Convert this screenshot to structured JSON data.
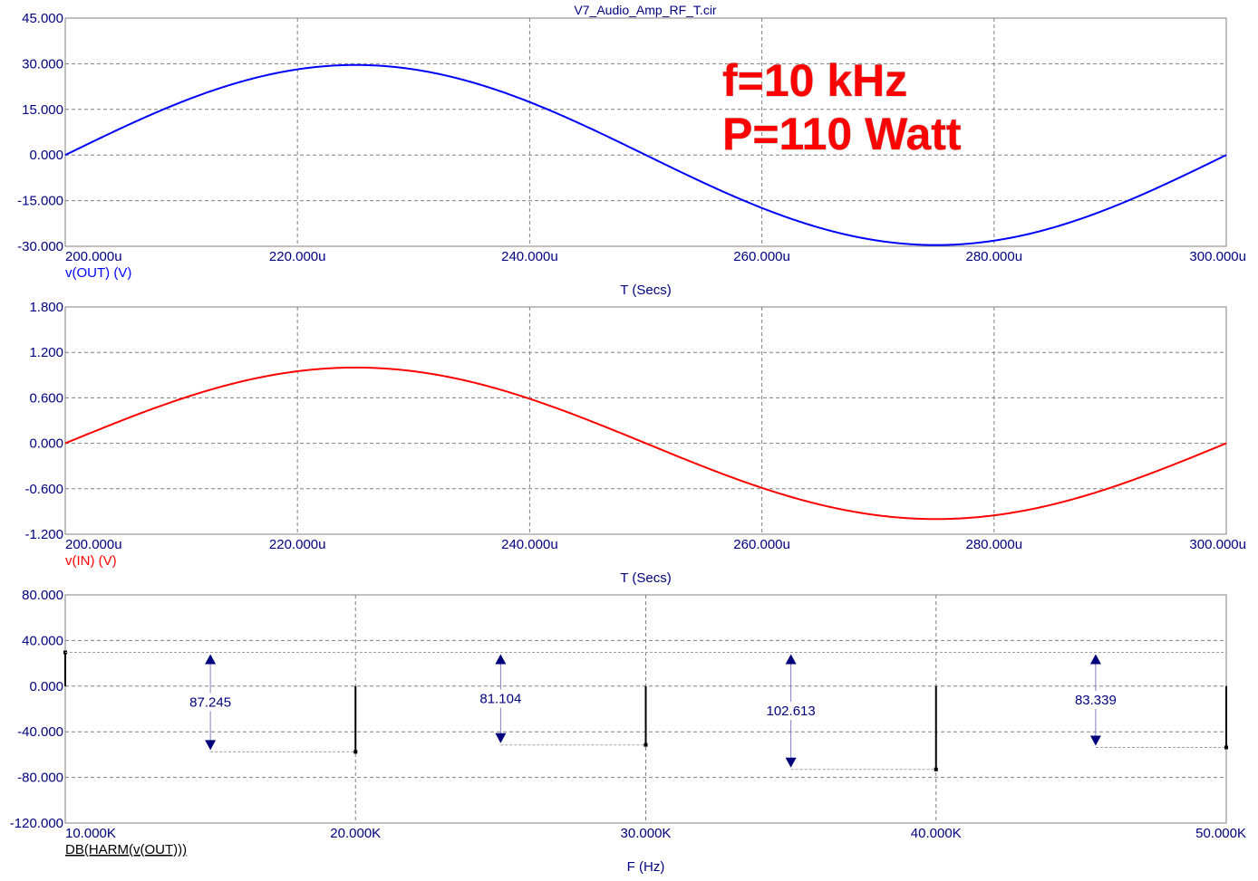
{
  "title": "V7_Audio_Amp_RF_T.cir",
  "annotation": {
    "line1": "f=10 kHz",
    "line2": "P=110 Watt",
    "color": "#ff0000"
  },
  "chart_data": [
    {
      "type": "line",
      "series": [
        {
          "name": "v(OUT) (V)",
          "color": "#0000ff",
          "function": "sine",
          "amplitude": 29.6,
          "frequency_hz": 10000,
          "phase_start_us": 200
        }
      ],
      "x_ticks": [
        "200.000u",
        "220.000u",
        "240.000u",
        "260.000u",
        "280.000u",
        "300.000u"
      ],
      "y_ticks": [
        "45.000",
        "30.000",
        "15.000",
        "0.000",
        "-15.000",
        "-30.000"
      ],
      "xlim": [
        200,
        300
      ],
      "ylim": [
        -30,
        45
      ],
      "xlabel": "T (Secs)",
      "ylabel": "v(OUT) (V)",
      "grid": true
    },
    {
      "type": "line",
      "series": [
        {
          "name": "v(IN) (V)",
          "color": "#ff0000",
          "function": "sine",
          "amplitude": 1.0,
          "frequency_hz": 10000,
          "phase_start_us": 200
        }
      ],
      "x_ticks": [
        "200.000u",
        "220.000u",
        "240.000u",
        "260.000u",
        "280.000u",
        "300.000u"
      ],
      "y_ticks": [
        "1.800",
        "1.200",
        "0.600",
        "0.000",
        "-0.600",
        "-1.200"
      ],
      "xlim": [
        200,
        300
      ],
      "ylim": [
        -1.2,
        1.8
      ],
      "xlabel": "T (Secs)",
      "ylabel": "v(IN) (V)",
      "grid": true
    },
    {
      "type": "bar",
      "series": [
        {
          "name": "DB(HARM(v(OUT)))",
          "color": "#000000",
          "x": [
            10000,
            20000,
            30000,
            40000,
            50000
          ],
          "values": [
            29.6,
            -57.6,
            -51.5,
            -73.0,
            -53.7
          ]
        }
      ],
      "x_ticks": [
        "10.000K",
        "20.000K",
        "30.000K",
        "40.000K",
        "50.000K"
      ],
      "y_ticks": [
        "80.000",
        "40.000",
        "0.000",
        "-40.000",
        "-80.000",
        "-120.000"
      ],
      "xlim": [
        10000,
        50000
      ],
      "ylim": [
        -120,
        80
      ],
      "xlabel": "F (Hz)",
      "ylabel": "DB(HARM(v(OUT)))",
      "grid": true,
      "measurements": [
        {
          "label": "87.245",
          "x": 15000,
          "top": 29.6,
          "bottom": -57.6
        },
        {
          "label": "81.104",
          "x": 25000,
          "top": 29.6,
          "bottom": -51.5
        },
        {
          "label": "102.613",
          "x": 35000,
          "top": 29.6,
          "bottom": -73.0
        },
        {
          "label": "83.339",
          "x": 45500,
          "top": 29.6,
          "bottom": -53.7
        }
      ]
    }
  ]
}
